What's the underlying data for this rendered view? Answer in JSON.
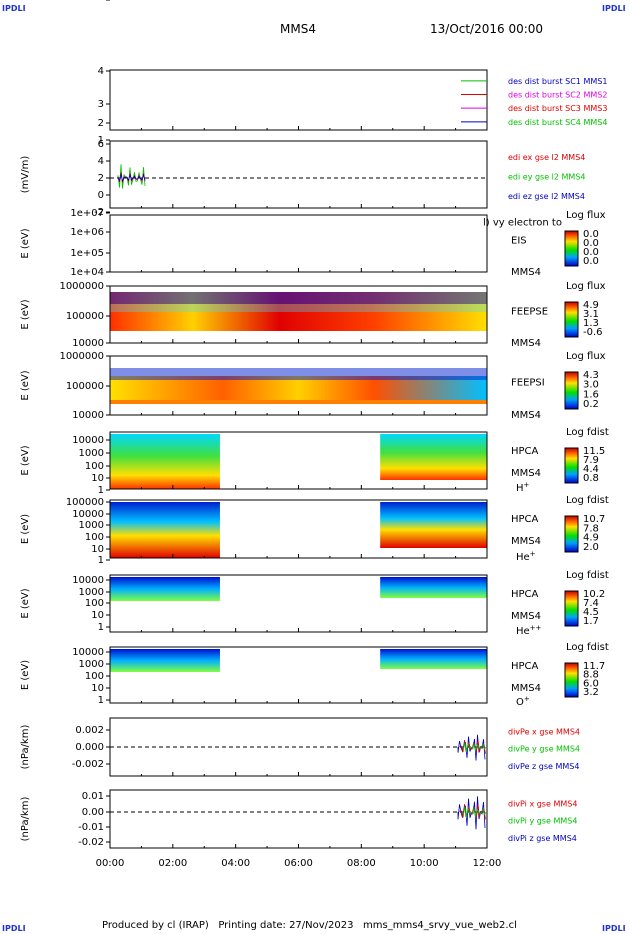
{
  "corners": {
    "tl": "IPDLI",
    "tr": "IPDLI",
    "bl": "IPDLI",
    "br": "IPDLI"
  },
  "header": {
    "spacecraft": "MMS4",
    "date": "13/Oct/2016 00:00"
  },
  "footer": {
    "text": "Produced by cl (IRAP)   Printing date: 27/Nov/2023   mms_mms4_srvy_vue_web2.cl"
  },
  "x_axis": {
    "ticks": [
      "00:00",
      "02:00",
      "04:00",
      "06:00",
      "08:00",
      "10:00",
      "12:00"
    ]
  },
  "colors": {
    "black": "#000000",
    "red": "#e00000",
    "green": "#00c000",
    "blue": "#0000c0",
    "magenta": "#e000e0"
  },
  "chart_data": [
    {
      "type": "line",
      "ylabel": "",
      "yticks": [
        "4",
        "3",
        "2",
        "1"
      ],
      "legend": [
        {
          "text": "des dist burst SC1 MMS1",
          "color": "#0000c0",
          "line": "#00c000"
        },
        {
          "text": "des dist burst SC2 MMS2",
          "color": "#e000e0",
          "line": "#e00000"
        },
        {
          "text": "des dist burst SC3 MMS3",
          "color": "#e00000",
          "line": "#e000e0"
        },
        {
          "text": "des dist burst SC4 MMS4",
          "color": "#00c000",
          "line": "#0000c0"
        }
      ]
    },
    {
      "type": "line",
      "ylabel": "(mV/m)",
      "yticks": [
        "6",
        "4",
        "2",
        "0",
        "-2",
        "-4"
      ],
      "legend": [
        {
          "text": "edi ex gse l2 MMS4",
          "color": "#e00000"
        },
        {
          "text": "edi ey gse l2 MMS4",
          "color": "#00c000"
        },
        {
          "text": "edi ez gse l2 MMS4",
          "color": "#0000c0"
        }
      ]
    },
    {
      "type": "heatmap",
      "ylabel": "E (eV)",
      "yticks": [
        "1e+07",
        "1e+06",
        "1e+05",
        "1e+04"
      ],
      "instrument": "EIS",
      "spacecraft": "MMS4",
      "overlay": "l) vy electron to",
      "cbar_title": "Log flux",
      "cbar_values": [
        "0.0",
        "0.0",
        "0.0",
        "0.0"
      ]
    },
    {
      "type": "heatmap",
      "ylabel": "E (eV)",
      "yticks": [
        "1000000",
        "100000",
        "10000"
      ],
      "instrument": "FEEPSE",
      "spacecraft": "MMS4",
      "cbar_title": "Log flux",
      "cbar_values": [
        "4.9",
        "3.1",
        "1.3",
        "-0.6"
      ]
    },
    {
      "type": "heatmap",
      "ylabel": "E (eV)",
      "yticks": [
        "1000000",
        "100000",
        "10000"
      ],
      "instrument": "FEEPSI",
      "spacecraft": "MMS4",
      "cbar_title": "Log flux",
      "cbar_values": [
        "4.3",
        "3.0",
        "1.6",
        "0.2"
      ]
    },
    {
      "type": "heatmap",
      "ylabel": "E (eV)",
      "yticks": [
        "10000",
        "1000",
        "100",
        "10",
        "1"
      ],
      "instrument": "HPCA",
      "spacecraft": "MMS4",
      "species": "H",
      "species_sup": "+",
      "cbar_title": "Log fdist",
      "cbar_values": [
        "11.5",
        "7.9",
        "4.4",
        "0.8"
      ]
    },
    {
      "type": "heatmap",
      "ylabel": "E (eV)",
      "yticks": [
        "100000",
        "10000",
        "1000",
        "100",
        "10",
        "1"
      ],
      "instrument": "HPCA",
      "spacecraft": "MMS4",
      "species": "He",
      "species_sup": "+",
      "cbar_title": "Log fdist",
      "cbar_values": [
        "10.7",
        "7.8",
        "4.9",
        "2.0"
      ]
    },
    {
      "type": "heatmap",
      "ylabel": "E (eV)",
      "yticks": [
        "10000",
        "1000",
        "100",
        "10",
        "1"
      ],
      "instrument": "HPCA",
      "spacecraft": "MMS4",
      "species": "He",
      "species_sup": "++",
      "cbar_title": "Log fdist",
      "cbar_values": [
        "10.2",
        "7.4",
        "4.5",
        "1.7"
      ]
    },
    {
      "type": "heatmap",
      "ylabel": "E (eV)",
      "yticks": [
        "10000",
        "1000",
        "100",
        "10",
        "1"
      ],
      "instrument": "HPCA",
      "spacecraft": "MMS4",
      "species": "O",
      "species_sup": "+",
      "cbar_title": "Log fdist",
      "cbar_values": [
        "11.7",
        "8.8",
        "6.0",
        "3.2"
      ]
    },
    {
      "type": "line",
      "ylabel": "(nPa/km)",
      "yticks": [
        "0.002",
        "0.000",
        "-0.002"
      ],
      "legend": [
        {
          "text": "divPe x gse MMS4",
          "color": "#e00000"
        },
        {
          "text": "divPe y gse MMS4",
          "color": "#00c000"
        },
        {
          "text": "divPe z gse MMS4",
          "color": "#0000c0"
        }
      ]
    },
    {
      "type": "line",
      "ylabel": "(nPa/km)",
      "yticks": [
        "0.01",
        "0.00",
        "-0.01",
        "-0.02"
      ],
      "legend": [
        {
          "text": "divPi x gse MMS4",
          "color": "#e00000"
        },
        {
          "text": "divPi y gse MMS4",
          "color": "#00c000"
        },
        {
          "text": "divPi z gse MMS4",
          "color": "#0000c0"
        }
      ]
    }
  ]
}
